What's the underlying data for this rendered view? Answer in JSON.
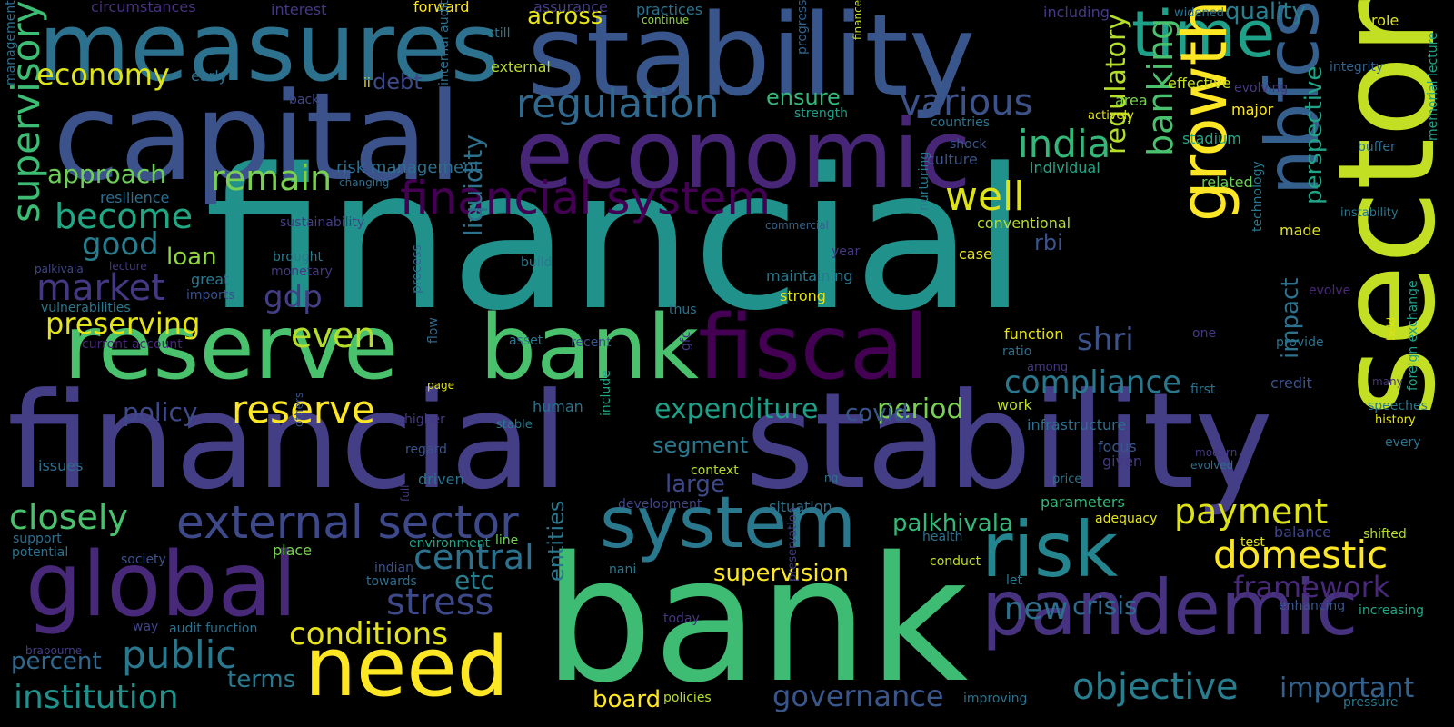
{
  "words": [
    {
      "text": "financial",
      "color": "#21918c"
    },
    {
      "text": "financial",
      "color": "#433e85"
    },
    {
      "text": "stability",
      "color": "#433e85"
    },
    {
      "text": "bank",
      "color": "#3fbc73"
    },
    {
      "text": "stability",
      "color": "#39568c"
    },
    {
      "text": "capital",
      "color": "#3b528b"
    },
    {
      "text": "measures",
      "color": "#2c728e"
    },
    {
      "text": "sector",
      "color": "#c2df23"
    },
    {
      "text": "economic",
      "color": "#482677"
    },
    {
      "text": "reserve",
      "color": "#4ac16d"
    },
    {
      "text": "bank",
      "color": "#4ac16d"
    },
    {
      "text": "fiscal",
      "color": "#440154"
    },
    {
      "text": "global",
      "color": "#482878"
    },
    {
      "text": "need",
      "color": "#fde725"
    },
    {
      "text": "system",
      "color": "#2a788e"
    },
    {
      "text": "risk",
      "color": "#25858e"
    },
    {
      "text": "pandemic",
      "color": "#46327e"
    },
    {
      "text": "time",
      "color": "#1fa088"
    },
    {
      "text": "nbfcs",
      "color": "#355f8d"
    },
    {
      "text": "growth",
      "color": "#fde725"
    },
    {
      "text": "external sector",
      "color": "#3e4989"
    },
    {
      "text": "financial system",
      "color": "#440154"
    },
    {
      "text": "regulation",
      "color": "#31688e"
    },
    {
      "text": "various",
      "color": "#3b528b"
    },
    {
      "text": "india",
      "color": "#35b779"
    },
    {
      "text": "well",
      "color": "#dde318"
    },
    {
      "text": "banking",
      "color": "#4ac16d"
    },
    {
      "text": "regulatory",
      "color": "#b5de2b"
    },
    {
      "text": "compliance",
      "color": "#2a788e"
    },
    {
      "text": "domestic",
      "color": "#fde725"
    },
    {
      "text": "payment",
      "color": "#dde318"
    },
    {
      "text": "framework",
      "color": "#482878"
    },
    {
      "text": "objective",
      "color": "#287d8e"
    },
    {
      "text": "important",
      "color": "#33638d"
    },
    {
      "text": "governance",
      "color": "#39568c"
    },
    {
      "text": "institution",
      "color": "#21918c"
    },
    {
      "text": "conditions",
      "color": "#e5e419"
    },
    {
      "text": "public",
      "color": "#2a788e"
    },
    {
      "text": "stress",
      "color": "#3e4989"
    },
    {
      "text": "central",
      "color": "#2c728e"
    },
    {
      "text": "closely",
      "color": "#4ac16d"
    },
    {
      "text": "reserve",
      "color": "#fde725"
    },
    {
      "text": "preserving",
      "color": "#e5e419"
    },
    {
      "text": "market",
      "color": "#453882"
    },
    {
      "text": "supervisory",
      "color": "#3dbc74"
    },
    {
      "text": "economy",
      "color": "#dde318"
    },
    {
      "text": "become",
      "color": "#22a785"
    },
    {
      "text": "good",
      "color": "#287d8e"
    },
    {
      "text": "remain",
      "color": "#7ad151"
    },
    {
      "text": "approach",
      "color": "#6ece58"
    },
    {
      "text": "expenditure",
      "color": "#1f9f88"
    },
    {
      "text": "period",
      "color": "#7ad151"
    },
    {
      "text": "even",
      "color": "#b5de2b"
    },
    {
      "text": "supervision",
      "color": "#fde725"
    },
    {
      "text": "shri",
      "color": "#3b528b"
    },
    {
      "text": "new",
      "color": "#2e6e8e"
    },
    {
      "text": "crisis",
      "color": "#31688e"
    },
    {
      "text": "palkhivala",
      "color": "#35b779"
    },
    {
      "text": "segment",
      "color": "#2a788e"
    },
    {
      "text": "large",
      "color": "#3e4989"
    },
    {
      "text": "liquidity",
      "color": "#2c728e"
    },
    {
      "text": "board",
      "color": "#fde725"
    },
    {
      "text": "terms",
      "color": "#2a788e"
    },
    {
      "text": "etc",
      "color": "#287d8e"
    },
    {
      "text": "gdp",
      "color": "#433e85"
    },
    {
      "text": "loan",
      "color": "#8fd744"
    },
    {
      "text": "policy",
      "color": "#3e4989"
    },
    {
      "text": "debt",
      "color": "#3e4989"
    },
    {
      "text": "ensure",
      "color": "#35b779"
    },
    {
      "text": "across",
      "color": "#e5e419"
    },
    {
      "text": "quality",
      "color": "#287d8e"
    },
    {
      "text": "risk management",
      "color": "#2e6e8e"
    },
    {
      "text": "covid",
      "color": "#39568c"
    },
    {
      "text": "rbi",
      "color": "#3b528b"
    },
    {
      "text": "impact",
      "color": "#2c728e"
    },
    {
      "text": "perspective",
      "color": "#20a386"
    },
    {
      "text": "percent",
      "color": "#31688e"
    },
    {
      "text": "entities",
      "color": "#2a788e"
    },
    {
      "text": "circumstances",
      "color": "#46327e"
    },
    {
      "text": "interest",
      "color": "#453882"
    },
    {
      "text": "forward",
      "color": "#fde725"
    },
    {
      "text": "assurance",
      "color": "#433e85"
    },
    {
      "text": "practices",
      "color": "#2c728e"
    },
    {
      "text": "continue",
      "color": "#8fd744"
    },
    {
      "text": "progress",
      "color": "#33638d"
    },
    {
      "text": "finance",
      "color": "#c2df23"
    },
    {
      "text": "including",
      "color": "#443a83"
    },
    {
      "text": "widened",
      "color": "#2c728e"
    },
    {
      "text": "role",
      "color": "#dde318"
    },
    {
      "text": "management",
      "color": "#2e6e8e"
    },
    {
      "text": "still",
      "color": "#2a788e"
    },
    {
      "text": "external",
      "color": "#b5de2b"
    },
    {
      "text": "early",
      "color": "#2e6e8e"
    },
    {
      "text": "ii",
      "color": "#e5e419"
    },
    {
      "text": "internal audit",
      "color": "#2e6e8e"
    },
    {
      "text": "integrity",
      "color": "#33638d"
    },
    {
      "text": "effective",
      "color": "#c2df23"
    },
    {
      "text": "evolving",
      "color": "#453882"
    },
    {
      "text": "back",
      "color": "#404688"
    },
    {
      "text": "strength",
      "color": "#1f9f88"
    },
    {
      "text": "area",
      "color": "#7ad151"
    },
    {
      "text": "major",
      "color": "#fde725"
    },
    {
      "text": "actively",
      "color": "#e5e419"
    },
    {
      "text": "countries",
      "color": "#2c728e"
    },
    {
      "text": "shock",
      "color": "#39568c"
    },
    {
      "text": "culture",
      "color": "#3b528b"
    },
    {
      "text": "stadium",
      "color": "#22a785"
    },
    {
      "text": "buffer",
      "color": "#2c728e"
    },
    {
      "text": "individual",
      "color": "#22a785"
    },
    {
      "text": "related",
      "color": "#6ece58"
    },
    {
      "text": "resilience",
      "color": "#2e6e8e"
    },
    {
      "text": "changing",
      "color": "#2e6e8e"
    },
    {
      "text": "sustainability",
      "color": "#433e85"
    },
    {
      "text": "commercial",
      "color": "#33638d"
    },
    {
      "text": "conventional",
      "color": "#b5de2b"
    },
    {
      "text": "instability",
      "color": "#2a788e"
    },
    {
      "text": "made",
      "color": "#dde318"
    },
    {
      "text": "year",
      "color": "#453882"
    },
    {
      "text": "case",
      "color": "#e5e419"
    },
    {
      "text": "brought",
      "color": "#287d8e"
    },
    {
      "text": "monetary",
      "color": "#453882"
    },
    {
      "text": "palkivala",
      "color": "#404688"
    },
    {
      "text": "lecture",
      "color": "#453882"
    },
    {
      "text": "great",
      "color": "#2a788e"
    },
    {
      "text": "imports",
      "color": "#3b528b"
    },
    {
      "text": "maintaining",
      "color": "#2a788e"
    },
    {
      "text": "nurturing",
      "color": "#2a788e"
    },
    {
      "text": "strong",
      "color": "#e5e419"
    },
    {
      "text": "build",
      "color": "#2a788e"
    },
    {
      "text": "vulnerabilities",
      "color": "#2a788e"
    },
    {
      "text": "current account",
      "color": "#482878"
    },
    {
      "text": "process",
      "color": "#31688e"
    },
    {
      "text": "thus",
      "color": "#2c728e"
    },
    {
      "text": "asset",
      "color": "#2a788e"
    },
    {
      "text": "recent",
      "color": "#3b528b"
    },
    {
      "text": "flow",
      "color": "#31688e"
    },
    {
      "text": "page",
      "color": "#dde318"
    },
    {
      "text": "gfc",
      "color": "#453882"
    },
    {
      "text": "function",
      "color": "#e5e419"
    },
    {
      "text": "ratio",
      "color": "#2e6e8e"
    },
    {
      "text": "among",
      "color": "#453882"
    },
    {
      "text": "work",
      "color": "#c2df23"
    },
    {
      "text": "one",
      "color": "#453882"
    },
    {
      "text": "technology",
      "color": "#2a788e"
    },
    {
      "text": "evolve",
      "color": "#482878"
    },
    {
      "text": "provide",
      "color": "#2c728e"
    },
    {
      "text": "credit",
      "color": "#3b528b"
    },
    {
      "text": "first",
      "color": "#2c728e"
    },
    {
      "text": "held",
      "color": "#dde318"
    },
    {
      "text": "speeches",
      "color": "#2a788e"
    },
    {
      "text": "foreign exchange",
      "color": "#1f9f88"
    },
    {
      "text": "memorial lecture",
      "color": "#20a386"
    },
    {
      "text": "history",
      "color": "#e5e419"
    },
    {
      "text": "many",
      "color": "#46327e"
    },
    {
      "text": "every",
      "color": "#2c728e"
    },
    {
      "text": "modern",
      "color": "#453882"
    },
    {
      "text": "evolved",
      "color": "#2e6e8e"
    },
    {
      "text": "higher",
      "color": "#453882"
    },
    {
      "text": "stable",
      "color": "#2a788e"
    },
    {
      "text": "human",
      "color": "#2c728e"
    },
    {
      "text": "include",
      "color": "#22a785"
    },
    {
      "text": "infrastructure",
      "color": "#2e6e8e"
    },
    {
      "text": "focus",
      "color": "#39568c"
    },
    {
      "text": "given",
      "color": "#453882"
    },
    {
      "text": "issues",
      "color": "#2e6e8e"
    },
    {
      "text": "regard",
      "color": "#3b528b"
    },
    {
      "text": "driven",
      "color": "#2c728e"
    },
    {
      "text": "others",
      "color": "#3b528b"
    },
    {
      "text": "context",
      "color": "#b5de2b"
    },
    {
      "text": "ng",
      "color": "#2c728e"
    },
    {
      "text": "price",
      "color": "#2c728e"
    },
    {
      "text": "development",
      "color": "#404688"
    },
    {
      "text": "situation",
      "color": "#2e6e8e"
    },
    {
      "text": "parameters",
      "color": "#35b779"
    },
    {
      "text": "adequacy",
      "color": "#e5e419"
    },
    {
      "text": "balance",
      "color": "#404688"
    },
    {
      "text": "shifted",
      "color": "#b5de2b"
    },
    {
      "text": "support",
      "color": "#2e6e8e"
    },
    {
      "text": "potential",
      "color": "#2c728e"
    },
    {
      "text": "society",
      "color": "#3b528b"
    },
    {
      "text": "place",
      "color": "#7ad151"
    },
    {
      "text": "full",
      "color": "#453882"
    },
    {
      "text": "environment",
      "color": "#20a386"
    },
    {
      "text": "line",
      "color": "#6ece58"
    },
    {
      "text": "health",
      "color": "#2c728e"
    },
    {
      "text": "test",
      "color": "#e5e419"
    },
    {
      "text": "indian",
      "color": "#3b528b"
    },
    {
      "text": "towards",
      "color": "#2e6e8e"
    },
    {
      "text": "nani",
      "color": "#2a788e"
    },
    {
      "text": "conduct",
      "color": "#c2df23"
    },
    {
      "text": "let",
      "color": "#2a788e"
    },
    {
      "text": "way",
      "color": "#404688"
    },
    {
      "text": "audit function",
      "color": "#2c728e"
    },
    {
      "text": "brabourne",
      "color": "#433e85"
    },
    {
      "text": "preservation",
      "color": "#433e85"
    },
    {
      "text": "today",
      "color": "#453882"
    },
    {
      "text": "enhancing",
      "color": "#39568c"
    },
    {
      "text": "increasing",
      "color": "#22a785"
    },
    {
      "text": "policies",
      "color": "#b5de2b"
    },
    {
      "text": "improving",
      "color": "#2c728e"
    },
    {
      "text": "pressure",
      "color": "#2a788e"
    }
  ]
}
